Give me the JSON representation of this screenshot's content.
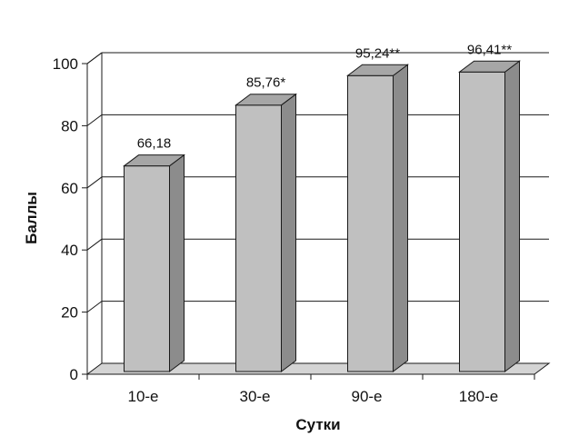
{
  "chart_data": {
    "type": "bar",
    "categories": [
      "10-е",
      "30-е",
      "90-е",
      "180-е"
    ],
    "values": [
      66.18,
      85.76,
      95.24,
      96.41
    ],
    "data_labels": [
      "66,18",
      "85,76*",
      "95,24**",
      "96,41**"
    ],
    "xlabel": "Сутки",
    "ylabel": "Баллы",
    "ylim": [
      0,
      100
    ],
    "yticks": [
      "0",
      "20",
      "40",
      "60",
      "80",
      "100"
    ],
    "grid": true,
    "style": "3d-column",
    "colors": {
      "bar_front": "#c0c0c0",
      "bar_side": "#8c8c8c",
      "bar_top": "#a6a6a6",
      "floor": "#d4d4d4",
      "outline": "#1a1a1a"
    }
  }
}
